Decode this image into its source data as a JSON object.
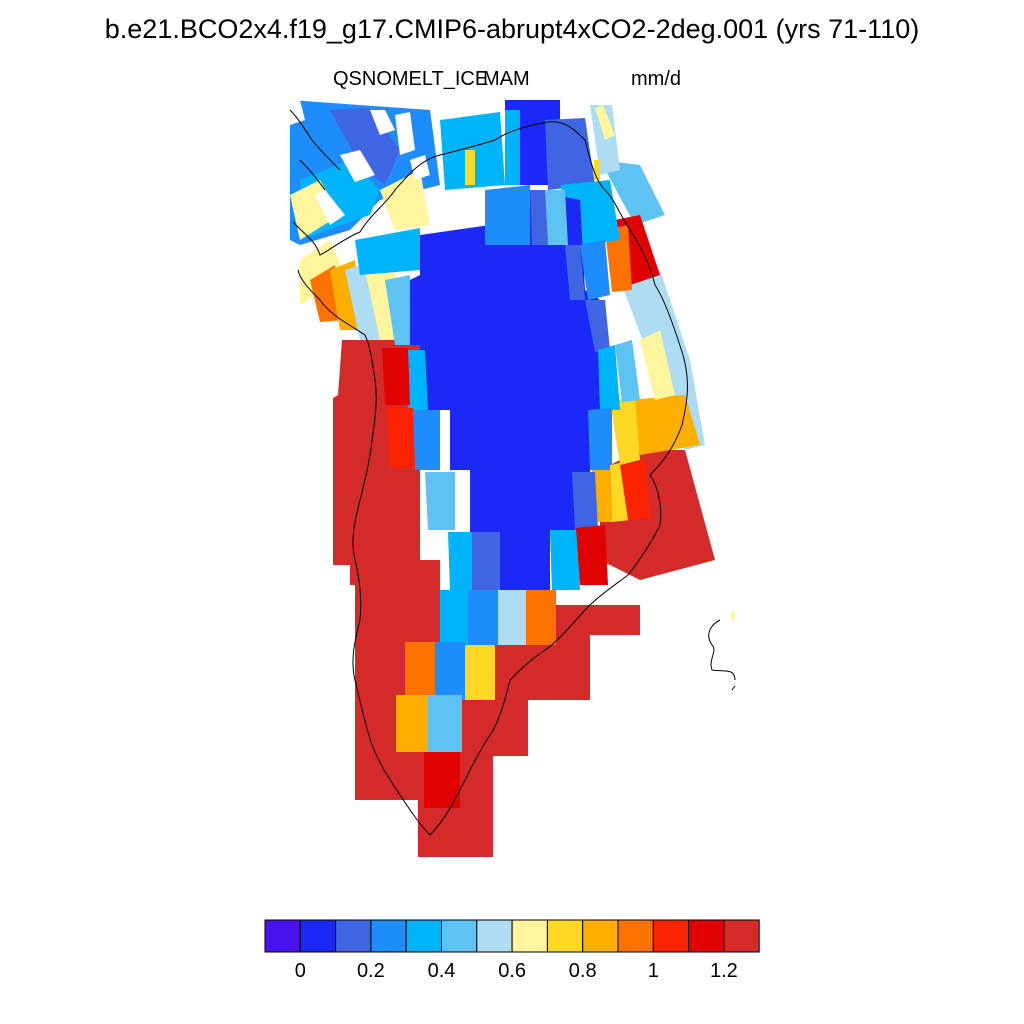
{
  "figure": {
    "title": "b.e21.BCO2x4.f19_g17.CMIP6-abrupt4xCO2-2deg.001 (yrs 71-110)",
    "variable": "QSNOMELT_ICE",
    "season": "MAM",
    "units": "mm/d"
  },
  "colorbar": {
    "colors": [
      "#4b12f0",
      "#1a29f5",
      "#3f65e2",
      "#1e8cfa",
      "#00b4fa",
      "#5ec3f2",
      "#aedcf2",
      "#fff59d",
      "#fdd825",
      "#fdaf00",
      "#fd7200",
      "#fd2200",
      "#e00000",
      "#d42a2a"
    ],
    "tick_labels": [
      "0",
      "0.2",
      "0.4",
      "0.6",
      "0.8",
      "1",
      "1.2"
    ]
  }
}
